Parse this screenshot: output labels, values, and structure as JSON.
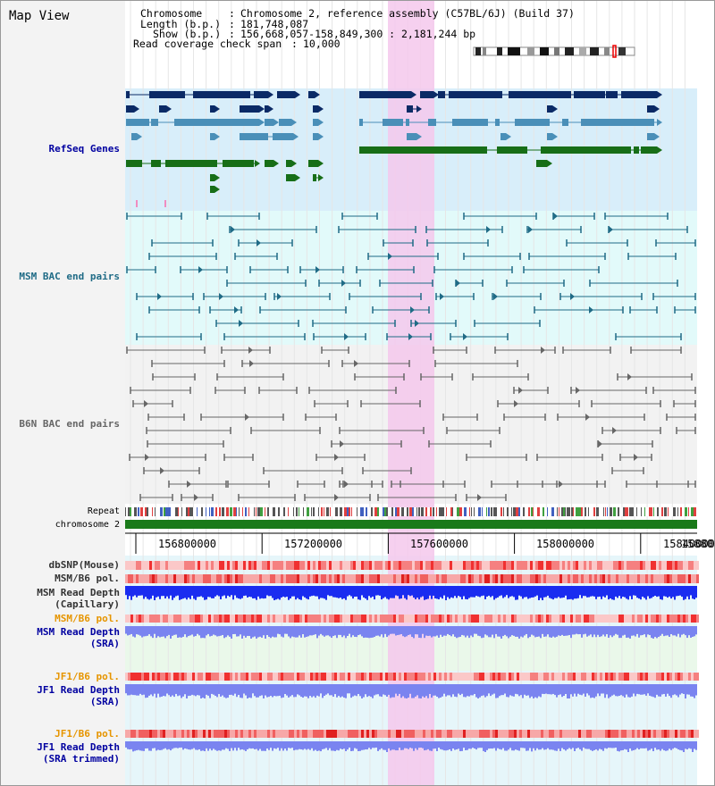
{
  "page": {
    "title": "Map View"
  },
  "header": {
    "chromosome_label": "Chromosome",
    "chromosome_value": "Chromosome 2, reference assembly (C57BL/6J) (Build 37)",
    "length_label": "Length (b.p.)",
    "length_value": "181,748,087",
    "show_label": "Show (b.p.)",
    "show_value": "156,668,057-158,849,300 : 2,181,244 bp",
    "coverage_label": "Read coverage check span",
    "coverage_value": "10,000"
  },
  "tracks": {
    "refseq": {
      "label": "RefSeq Genes"
    },
    "msm_bac": {
      "label": "MSM BAC end pairs"
    },
    "b6n_bac": {
      "label": "B6N BAC end pairs"
    },
    "repeat": {
      "label": "Repeat"
    },
    "chromosome": {
      "label": "chromosome 2"
    },
    "dbsnp": {
      "label": "dbSNP(Mouse)"
    },
    "msm_b6_pol": {
      "label": "MSM/B6 pol."
    },
    "msm_depth_cap": {
      "label1": "MSM Read Depth",
      "label2": "(Capillary)"
    },
    "msm_b6_pol2": {
      "label": "MSM/B6 pol."
    },
    "msm_depth_sra": {
      "label1": "MSM Read Depth",
      "label2": "(SRA)"
    },
    "jf1_b6_pol": {
      "label": "JF1/B6 pol."
    },
    "jf1_depth_sra": {
      "label1": "JF1 Read Depth",
      "label2": "(SRA)"
    },
    "jf1_b6_pol2": {
      "label": "JF1/B6 pol."
    },
    "jf1_depth_trim": {
      "label1": "JF1 Read Depth",
      "label2": "(SRA trimmed)"
    }
  },
  "ruler": {
    "ticks": [
      "156800000",
      "157200000",
      "157600000",
      "158000000",
      "158400000",
      "15880"
    ]
  },
  "colors": {
    "refseq_dark": "#0b2a66",
    "refseq_mid": "#4a8fb8",
    "refseq_green": "#176e17",
    "msm_line": "#1f6b86",
    "b6n_line": "#666666",
    "highlight": "#f5c8ec",
    "depth_blue": "#1a2cf0",
    "depth_light": "#7a84f0",
    "snp_red": "#e23030",
    "label_navy": "#0000a0",
    "label_orange": "#e69500"
  }
}
